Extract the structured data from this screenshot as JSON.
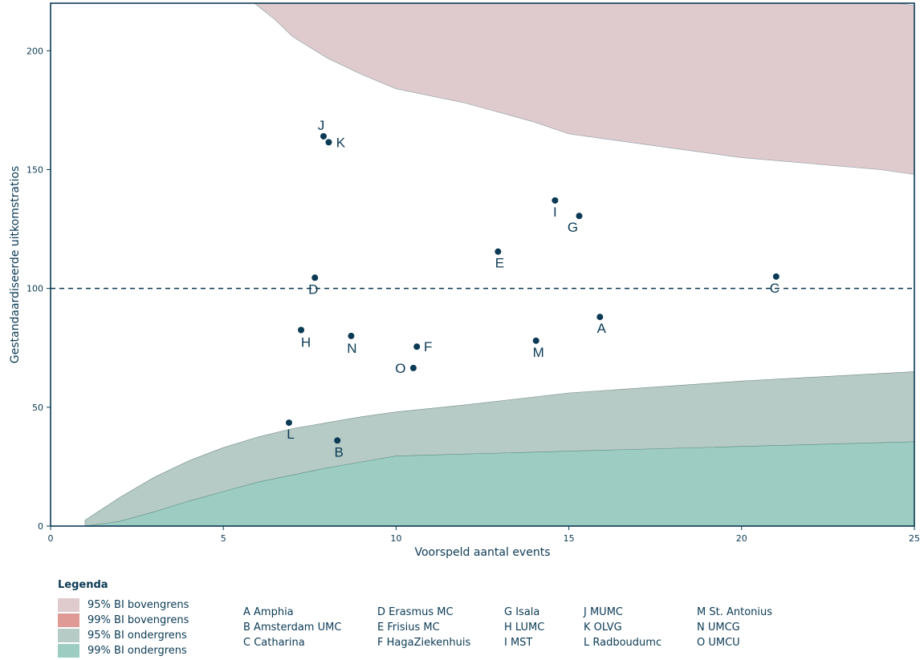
{
  "chart_data": {
    "type": "scatter",
    "xlabel": "Voorspeld aantal events",
    "ylabel": "Gestandaardiseerde uitkomstratios",
    "xlim": [
      0,
      25
    ],
    "ylim": [
      0,
      220
    ],
    "xticks": [
      0,
      5,
      10,
      15,
      20,
      25
    ],
    "yticks": [
      0,
      50,
      100,
      150,
      200
    ],
    "reference_line": {
      "y": 100,
      "style": "dashed"
    },
    "points": [
      {
        "label": "A",
        "x": 15.9,
        "y": 88
      },
      {
        "label": "B",
        "x": 8.3,
        "y": 36
      },
      {
        "label": "C",
        "x": 21.0,
        "y": 105
      },
      {
        "label": "D",
        "x": 7.65,
        "y": 104.5
      },
      {
        "label": "E",
        "x": 12.95,
        "y": 115.5
      },
      {
        "label": "F",
        "x": 10.6,
        "y": 75.5
      },
      {
        "label": "G",
        "x": 15.3,
        "y": 130.5
      },
      {
        "label": "H",
        "x": 7.25,
        "y": 82.5
      },
      {
        "label": "I",
        "x": 14.6,
        "y": 137
      },
      {
        "label": "J",
        "x": 7.9,
        "y": 164
      },
      {
        "label": "K",
        "x": 8.05,
        "y": 161.5
      },
      {
        "label": "L",
        "x": 6.9,
        "y": 43.5
      },
      {
        "label": "M",
        "x": 14.05,
        "y": 78
      },
      {
        "label": "N",
        "x": 8.7,
        "y": 80
      },
      {
        "label": "O",
        "x": 10.5,
        "y": 66.5
      }
    ],
    "bands": {
      "upper95": [
        [
          5.9,
          220
        ],
        [
          6.5,
          213
        ],
        [
          7,
          206
        ],
        [
          8,
          197
        ],
        [
          9,
          190
        ],
        [
          10,
          184
        ],
        [
          12,
          178
        ],
        [
          14,
          170
        ],
        [
          15,
          165
        ],
        [
          16,
          163
        ],
        [
          18,
          159
        ],
        [
          20,
          155
        ],
        [
          22,
          152.5
        ],
        [
          24,
          150
        ],
        [
          25,
          148
        ]
      ],
      "lower95": [
        [
          1,
          2.5
        ],
        [
          2,
          12
        ],
        [
          3,
          20.5
        ],
        [
          4,
          27.5
        ],
        [
          5,
          33
        ],
        [
          6,
          37.5
        ],
        [
          7,
          41
        ],
        [
          8,
          43.5
        ],
        [
          9,
          46
        ],
        [
          10,
          48
        ],
        [
          12,
          51
        ],
        [
          15,
          56
        ],
        [
          20,
          61
        ],
        [
          25,
          65
        ]
      ],
      "lower99": [
        [
          1,
          0
        ],
        [
          2,
          2
        ],
        [
          3,
          6
        ],
        [
          4,
          10.5
        ],
        [
          5,
          14.5
        ],
        [
          6,
          18.5
        ],
        [
          7,
          21.5
        ],
        [
          8,
          24.5
        ],
        [
          9,
          27
        ],
        [
          10,
          29.5
        ],
        [
          15,
          31.5
        ],
        [
          20,
          33.5
        ],
        [
          25,
          35.5
        ]
      ],
      "upper_ceiling": [
        [
          5.9,
          220
        ],
        [
          24.5,
          220
        ],
        [
          25,
          219
        ]
      ]
    }
  },
  "legend": {
    "title": "Legenda",
    "items": [
      {
        "label": "95% BI bovengrens",
        "color": "#dfcbcd"
      },
      {
        "label": "99% BI bovengrens",
        "color": "#df9a95"
      },
      {
        "label": "95% BI ondergrens",
        "color": "#b7cbc6"
      },
      {
        "label": "99% BI ondergrens",
        "color": "#9dcdc2"
      }
    ]
  },
  "hospitals": [
    [
      "A Amphia",
      "B Amsterdam UMC",
      "C Catharina"
    ],
    [
      "D Erasmus MC",
      "E Frisius MC",
      "F HagaZiekenhuis"
    ],
    [
      "G Isala",
      "H LUMC",
      "I MST"
    ],
    [
      "J MUMC",
      "K OLVG",
      "L Radboudumc"
    ],
    [
      "M St. Antonius",
      "N UMCG",
      "O UMCU"
    ]
  ],
  "colors": {
    "axis": "#0b3a55",
    "point": "#0b3a55"
  }
}
